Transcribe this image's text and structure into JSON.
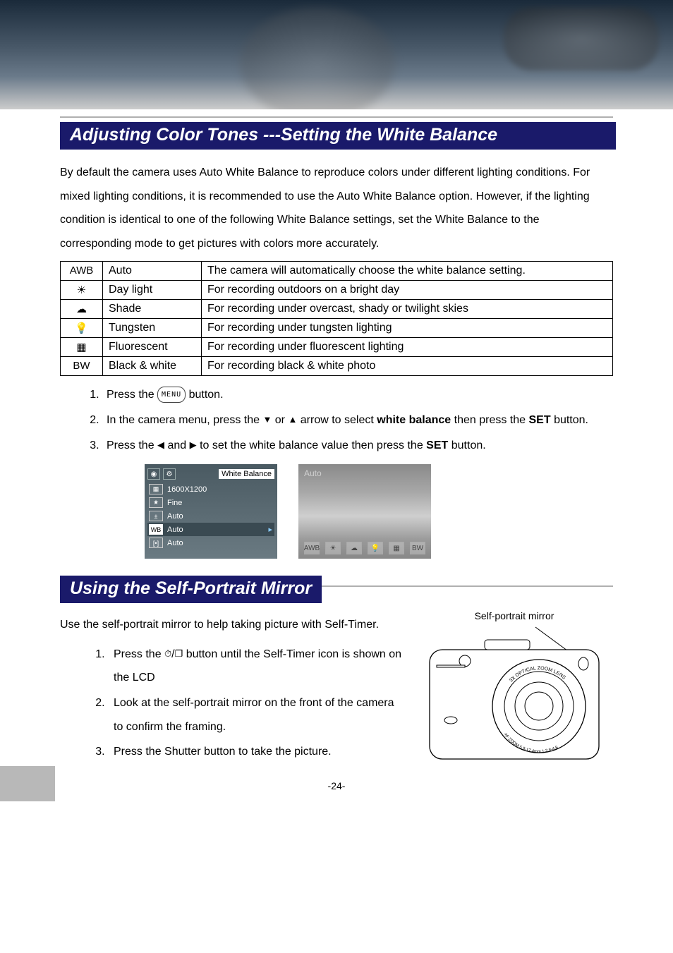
{
  "banner": {
    "bg_gradient": [
      "#1a2a3a",
      "#2a3a4a",
      "#4a5a6a",
      "#6a7a8a",
      "#cccccc"
    ]
  },
  "section1": {
    "title": "Adjusting Color Tones ---Setting the White Balance",
    "intro": "By default the camera uses Auto White Balance to reproduce colors under different lighting conditions. For mixed lighting conditions, it is recommended to use the Auto White Balance option. However, if the lighting condition is identical to one of the following White Balance settings, set the White Balance to the corresponding mode to get pictures with colors more accurately."
  },
  "wb_table": {
    "rows": [
      {
        "icon": "AWB",
        "name": "Auto",
        "desc": "The camera will automatically choose the white balance setting."
      },
      {
        "icon": "☀",
        "name": "Day light",
        "desc": "For recording outdoors on a bright day"
      },
      {
        "icon": "☁",
        "name": "Shade",
        "desc": "For recording under overcast, shady or twilight skies"
      },
      {
        "icon": "💡",
        "name": "Tungsten",
        "desc": "For recording under tungsten lighting"
      },
      {
        "icon": "▦",
        "name": "Fluorescent",
        "desc": "For recording under fluorescent lighting"
      },
      {
        "icon": "BW",
        "name": "Black & white",
        "desc": "For recording black & white photo"
      }
    ]
  },
  "steps1": {
    "s1_a": "Press the ",
    "s1_menu": "MENU",
    "s1_b": " button.",
    "s2_a": "In the camera menu, press the ",
    "s2_b": " or ",
    "s2_c": " arrow to select ",
    "s2_bold1": "white balance",
    "s2_d": " then press the ",
    "s2_bold2": "SET",
    "s2_e": " button.",
    "s3_a": "Press the ",
    "s3_b": " and ",
    "s3_c": " to set the white balance value then press the ",
    "s3_bold": "SET",
    "s3_d": " button."
  },
  "lcd_menu": {
    "header_label": "White Balance",
    "items": [
      {
        "icon": "▦",
        "text": "1600X1200"
      },
      {
        "icon": "★",
        "text": "Fine"
      },
      {
        "icon": "±",
        "text": "Auto"
      },
      {
        "icon": "WB",
        "text": "Auto",
        "selected": true
      },
      {
        "icon": "[•]",
        "text": "Auto"
      }
    ]
  },
  "lcd_preview": {
    "label": "Auto",
    "icons": [
      "AWB",
      "☀",
      "☁",
      "💡",
      "▦",
      "BW"
    ]
  },
  "section2": {
    "title": "Using the Self-Portrait Mirror",
    "intro": "Use the self-portrait mirror to help taking picture with Self-Timer.",
    "fig_label": "Self-portrait mirror",
    "lens_text1": "3X OPTICAL ZOOM LENS",
    "lens_text2": "AF ZOOM 5.8-17.4mm 1:2.8-4.8"
  },
  "steps2": {
    "s1_a": "Press the ",
    "s1_b": " button until the Self-Timer icon is shown on the LCD",
    "s2": "Look at the self-portrait mirror on the front of the camera to confirm the framing.",
    "s3": "Press the Shutter button to take the picture."
  },
  "page_number": "-24-",
  "colors": {
    "title_bg": "#1a1a6a",
    "title_fg": "#ffffff",
    "rule": "#b0b0b0",
    "text": "#000000"
  }
}
